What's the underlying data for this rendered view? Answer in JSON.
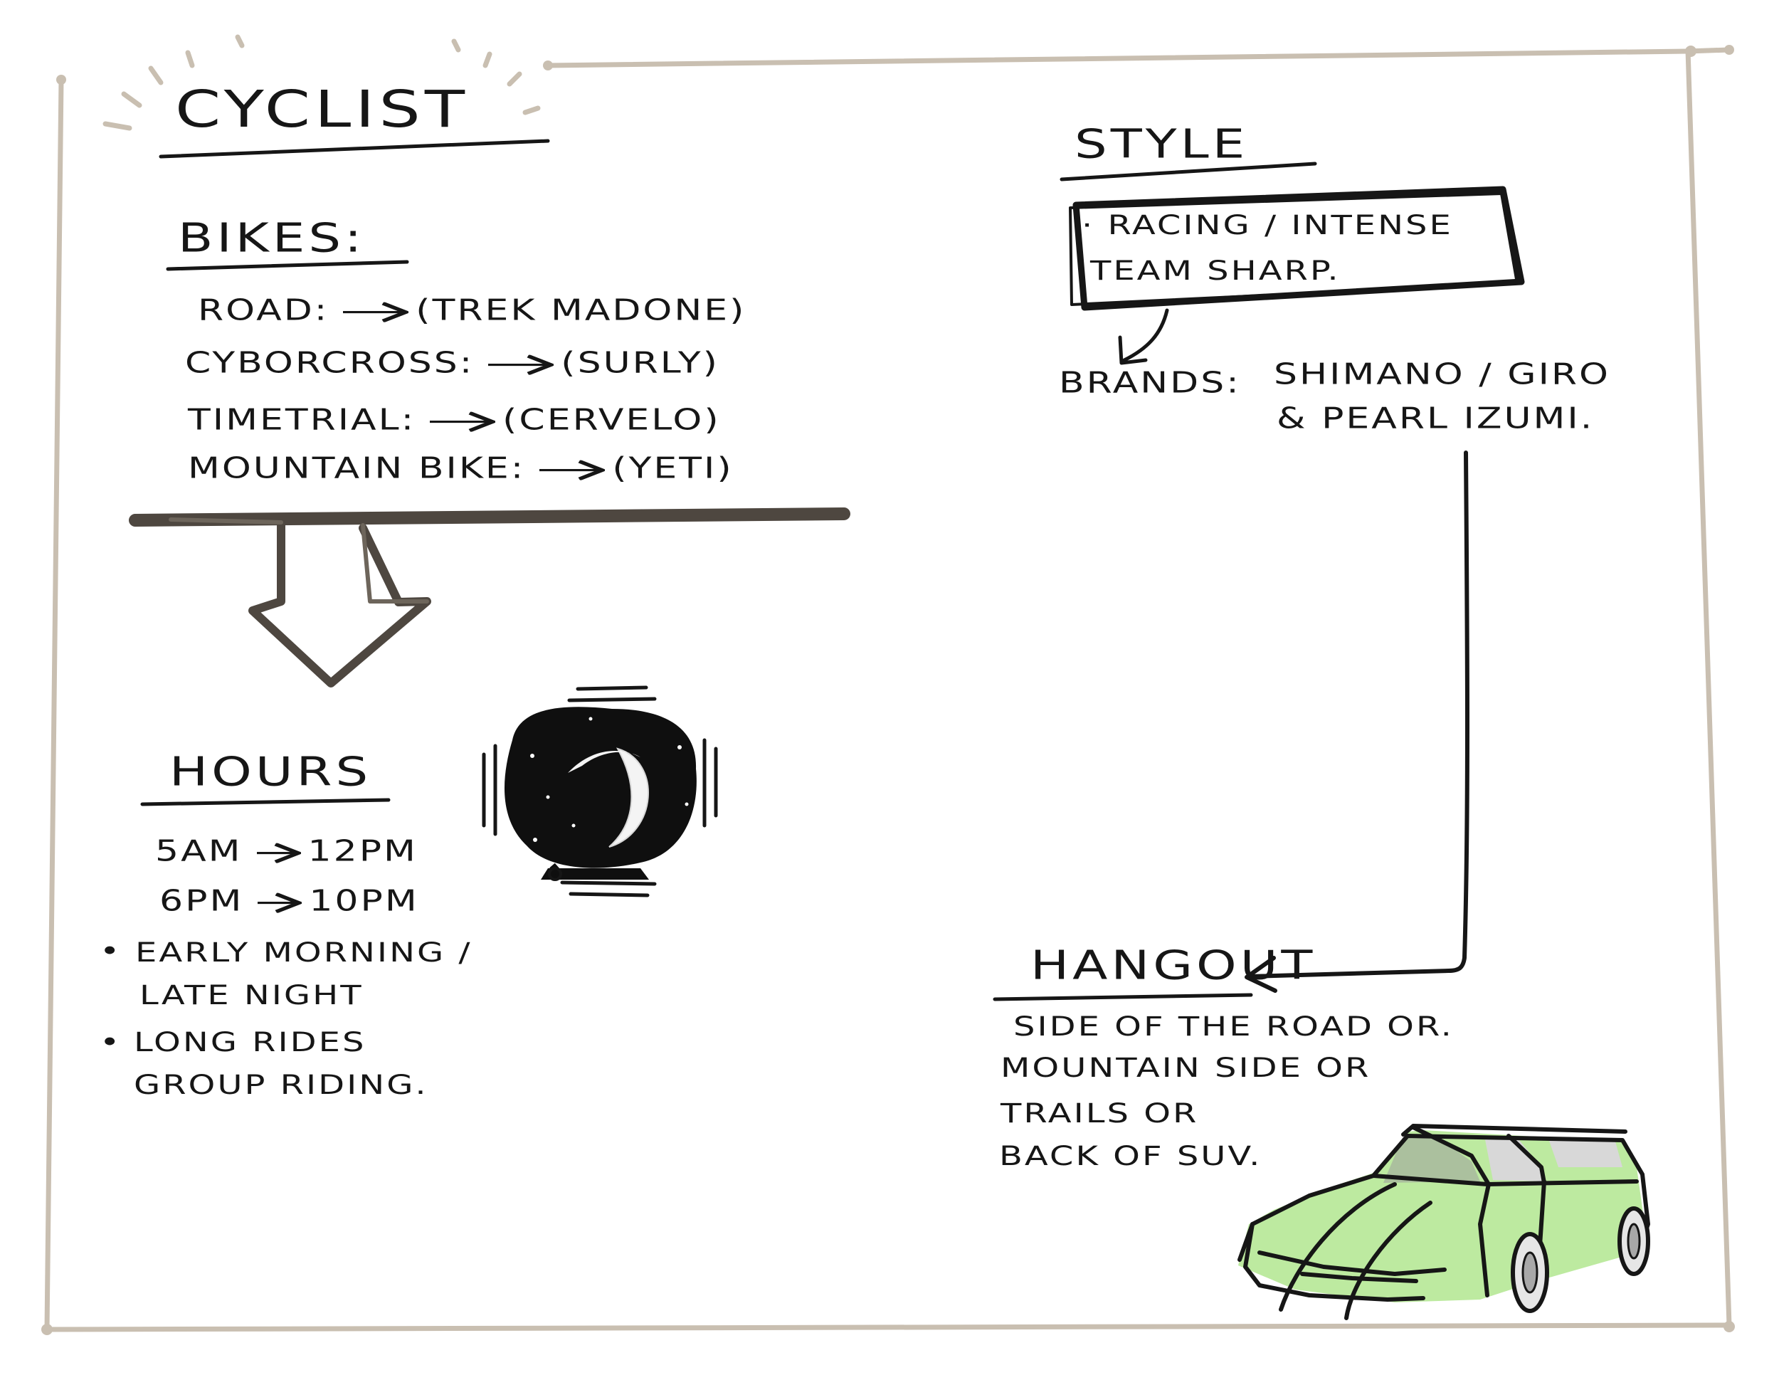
{
  "title": "Cyclist",
  "bikes": {
    "heading": "Bikes:",
    "items": [
      {
        "type": "Road:",
        "brand": "(Trek Madone)"
      },
      {
        "type": "Cyborcross:",
        "brand": "(Surly)"
      },
      {
        "type": "Timetrial:",
        "brand": "(Cervelo)"
      },
      {
        "type": "Mountain Bike:",
        "brand": "(Yeti)"
      }
    ]
  },
  "hours": {
    "heading": "Hours",
    "times": [
      {
        "start": "5am",
        "end": "12pm"
      },
      {
        "start": "6pm",
        "end": "10pm"
      }
    ],
    "bullets": [
      [
        "Early Morning /",
        "Late Night"
      ],
      [
        "Long Rides",
        "Group Riding."
      ]
    ]
  },
  "style": {
    "heading": "Style",
    "box_lines": [
      "· Racing / Intense",
      "Team Sharp."
    ],
    "brands_label": "Brands:",
    "brands_lines": [
      "Shimano / Giro",
      "& Pearl Izumi."
    ]
  },
  "hangout": {
    "heading": "Hangout",
    "lines": [
      "Side of the road or.",
      "Mountain side or",
      "Trails or",
      "Back of SUV."
    ]
  },
  "colors": {
    "ink": "#161616",
    "frame": "#c9bfb1",
    "arrow_fill": "#5a5249",
    "car_fill": "#bdeaa0"
  }
}
